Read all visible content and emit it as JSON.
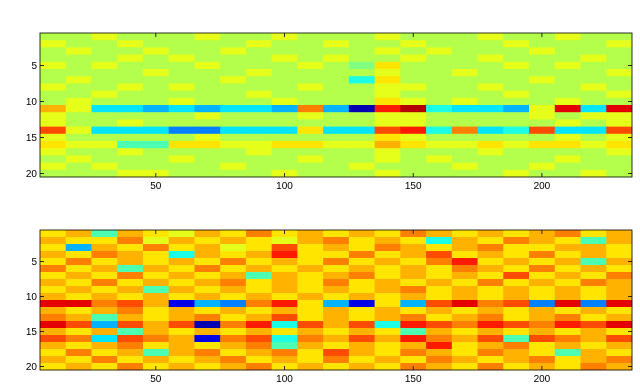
{
  "chart_data": [
    {
      "type": "heatmap",
      "colormap": "jet",
      "clim": [
        -10,
        10
      ],
      "y_reversed": true,
      "x": [
        10,
        20,
        30,
        40,
        50,
        60,
        70,
        80,
        90,
        100,
        110,
        120,
        130,
        140,
        150,
        160,
        170,
        180,
        190,
        200,
        210,
        220,
        230
      ],
      "y": [
        1,
        2,
        3,
        4,
        5,
        6,
        7,
        8,
        9,
        10,
        11,
        12,
        13,
        14,
        15,
        16,
        17,
        18,
        19,
        20
      ],
      "xlim": [
        5,
        235
      ],
      "ylim": [
        0.5,
        20.5
      ],
      "xticks": [
        50,
        100,
        150,
        200
      ],
      "yticks": [
        5,
        10,
        15,
        20
      ],
      "z": [
        [
          1,
          1,
          2,
          1,
          1,
          1,
          2,
          1,
          1,
          2,
          1,
          1,
          1,
          2,
          1,
          1,
          1,
          2,
          1,
          1,
          2,
          1,
          1
        ],
        [
          2,
          1,
          1,
          2,
          1,
          1,
          1,
          1,
          2,
          1,
          1,
          2,
          1,
          1,
          2,
          1,
          1,
          1,
          2,
          1,
          1,
          1,
          2
        ],
        [
          1,
          2,
          1,
          1,
          2,
          1,
          1,
          2,
          1,
          1,
          1,
          1,
          1,
          2,
          1,
          2,
          1,
          1,
          1,
          2,
          1,
          1,
          1
        ],
        [
          1,
          1,
          1,
          2,
          1,
          2,
          1,
          1,
          1,
          2,
          1,
          2,
          1,
          1,
          2,
          1,
          1,
          2,
          1,
          1,
          1,
          2,
          1
        ],
        [
          2,
          1,
          2,
          1,
          1,
          1,
          2,
          1,
          1,
          1,
          2,
          1,
          0,
          3,
          1,
          1,
          1,
          1,
          2,
          1,
          2,
          1,
          1
        ],
        [
          1,
          1,
          1,
          1,
          2,
          1,
          1,
          1,
          2,
          1,
          1,
          1,
          1,
          2,
          1,
          1,
          2,
          1,
          1,
          1,
          1,
          1,
          2
        ],
        [
          1,
          2,
          1,
          1,
          1,
          1,
          1,
          2,
          1,
          1,
          1,
          1,
          -2,
          3,
          1,
          1,
          1,
          1,
          1,
          2,
          1,
          1,
          1
        ],
        [
          2,
          1,
          1,
          2,
          1,
          2,
          1,
          1,
          1,
          1,
          2,
          1,
          1,
          2,
          2,
          1,
          1,
          2,
          1,
          1,
          1,
          2,
          1
        ],
        [
          1,
          1,
          2,
          1,
          1,
          1,
          1,
          1,
          2,
          1,
          1,
          1,
          1,
          2,
          1,
          1,
          1,
          1,
          2,
          1,
          1,
          1,
          2
        ],
        [
          1,
          2,
          1,
          1,
          1,
          2,
          1,
          1,
          1,
          2,
          1,
          1,
          1,
          3,
          2,
          1,
          2,
          1,
          1,
          1,
          2,
          1,
          1
        ],
        [
          4,
          2,
          -3,
          -3,
          -4,
          -3,
          -4,
          -3,
          -3,
          -4,
          5,
          -4,
          -9,
          7,
          9,
          -2,
          -3,
          -3,
          -4,
          2,
          8,
          -3,
          8
        ],
        [
          2,
          1,
          1,
          1,
          1,
          1,
          2,
          1,
          1,
          1,
          2,
          1,
          1,
          2,
          2,
          1,
          1,
          1,
          1,
          2,
          1,
          2,
          2
        ],
        [
          2,
          1,
          1,
          2,
          1,
          1,
          1,
          1,
          1,
          1,
          1,
          1,
          1,
          2,
          2,
          1,
          1,
          1,
          1,
          1,
          2,
          1,
          2
        ],
        [
          6,
          2,
          -3,
          -3,
          -3,
          -5,
          -5,
          -3,
          -3,
          -3,
          3,
          -3,
          -3,
          6,
          7,
          -2,
          5,
          -3,
          -2,
          6,
          -3,
          -3,
          6
        ],
        [
          2,
          1,
          1,
          1,
          1,
          1,
          2,
          1,
          1,
          1,
          1,
          1,
          1,
          3,
          2,
          1,
          1,
          1,
          1,
          1,
          2,
          1,
          2
        ],
        [
          3,
          2,
          2,
          -1,
          -1,
          3,
          3,
          2,
          2,
          3,
          3,
          2,
          2,
          4,
          3,
          2,
          2,
          3,
          2,
          3,
          3,
          2,
          3
        ],
        [
          2,
          1,
          1,
          2,
          1,
          1,
          1,
          1,
          2,
          1,
          1,
          1,
          1,
          2,
          1,
          1,
          1,
          2,
          1,
          1,
          1,
          1,
          2
        ],
        [
          1,
          2,
          1,
          1,
          1,
          2,
          1,
          1,
          1,
          1,
          2,
          1,
          1,
          2,
          1,
          2,
          1,
          1,
          1,
          1,
          2,
          1,
          1
        ],
        [
          2,
          1,
          2,
          1,
          1,
          1,
          1,
          2,
          1,
          1,
          1,
          1,
          2,
          1,
          1,
          1,
          2,
          1,
          1,
          2,
          1,
          1,
          1
        ],
        [
          1,
          1,
          1,
          2,
          2,
          1,
          1,
          1,
          1,
          2,
          1,
          1,
          1,
          2,
          1,
          1,
          1,
          1,
          2,
          1,
          1,
          2,
          1
        ]
      ]
    },
    {
      "type": "heatmap",
      "colormap": "jet",
      "clim": [
        -10,
        10
      ],
      "y_reversed": true,
      "x": [
        10,
        20,
        30,
        40,
        50,
        60,
        70,
        80,
        90,
        100,
        110,
        120,
        130,
        140,
        150,
        160,
        170,
        180,
        190,
        200,
        210,
        220,
        230
      ],
      "y": [
        1,
        2,
        3,
        4,
        5,
        6,
        7,
        8,
        9,
        10,
        11,
        12,
        13,
        14,
        15,
        16,
        17,
        18,
        19,
        20
      ],
      "xlim": [
        5,
        235
      ],
      "ylim": [
        0.5,
        20.5
      ],
      "xticks": [
        50,
        100,
        150,
        200
      ],
      "yticks": [
        5,
        10,
        15,
        20
      ],
      "z": [
        [
          3,
          4,
          -1,
          4,
          3,
          2,
          4,
          3,
          5,
          3,
          4,
          3,
          4,
          3,
          5,
          4,
          3,
          4,
          3,
          4,
          5,
          3,
          4
        ],
        [
          4,
          3,
          3,
          5,
          2,
          4,
          3,
          4,
          3,
          2,
          4,
          5,
          3,
          4,
          3,
          -2,
          4,
          3,
          5,
          4,
          3,
          -1,
          4
        ],
        [
          3,
          -4,
          4,
          3,
          5,
          3,
          4,
          2,
          3,
          6,
          3,
          4,
          3,
          5,
          4,
          3,
          4,
          5,
          3,
          3,
          4,
          4,
          3
        ],
        [
          4,
          3,
          5,
          4,
          3,
          -2,
          4,
          3,
          4,
          7,
          3,
          3,
          5,
          3,
          4,
          6,
          3,
          4,
          3,
          5,
          3,
          4,
          3
        ],
        [
          3,
          5,
          3,
          4,
          3,
          4,
          3,
          5,
          3,
          4,
          3,
          5,
          3,
          4,
          3,
          5,
          7,
          3,
          4,
          3,
          4,
          -1,
          4
        ],
        [
          5,
          3,
          4,
          -1,
          4,
          3,
          5,
          3,
          4,
          3,
          4,
          3,
          4,
          3,
          4,
          3,
          5,
          4,
          3,
          5,
          3,
          4,
          3
        ],
        [
          3,
          4,
          3,
          5,
          3,
          4,
          3,
          4,
          -1,
          4,
          3,
          4,
          5,
          3,
          4,
          3,
          4,
          3,
          6,
          3,
          4,
          3,
          5
        ],
        [
          4,
          3,
          5,
          3,
          4,
          3,
          4,
          5,
          3,
          4,
          3,
          5,
          3,
          4,
          3,
          4,
          3,
          5,
          3,
          4,
          3,
          5,
          4
        ],
        [
          3,
          4,
          3,
          4,
          -1,
          4,
          3,
          4,
          3,
          4,
          3,
          4,
          3,
          4,
          5,
          3,
          4,
          3,
          4,
          3,
          4,
          3,
          4
        ],
        [
          4,
          3,
          4,
          3,
          4,
          3,
          4,
          3,
          4,
          3,
          4,
          3,
          4,
          3,
          4,
          3,
          4,
          3,
          4,
          3,
          4,
          3,
          4
        ],
        [
          8,
          8,
          5,
          6,
          4,
          -8,
          -4,
          -5,
          5,
          7,
          3,
          -4,
          -8,
          3,
          -4,
          6,
          8,
          5,
          6,
          -5,
          8,
          -5,
          8
        ],
        [
          4,
          3,
          4,
          5,
          3,
          4,
          3,
          4,
          3,
          4,
          3,
          4,
          3,
          4,
          3,
          4,
          3,
          4,
          3,
          4,
          3,
          4,
          3
        ],
        [
          5,
          4,
          -1,
          4,
          3,
          4,
          5,
          3,
          4,
          6,
          3,
          4,
          3,
          4,
          5,
          3,
          4,
          5,
          3,
          4,
          5,
          3,
          4
        ],
        [
          8,
          6,
          -4,
          6,
          4,
          6,
          -9,
          5,
          7,
          -2,
          6,
          4,
          6,
          -2,
          7,
          6,
          5,
          7,
          6,
          5,
          7,
          6,
          8
        ],
        [
          4,
          3,
          4,
          -1,
          4,
          3,
          4,
          3,
          4,
          3,
          4,
          3,
          4,
          3,
          -1,
          4,
          3,
          4,
          3,
          4,
          3,
          4,
          3
        ],
        [
          6,
          5,
          -3,
          6,
          5,
          4,
          -8,
          5,
          6,
          -2,
          5,
          4,
          6,
          4,
          7,
          5,
          4,
          6,
          -1,
          6,
          5,
          4,
          6
        ],
        [
          4,
          3,
          4,
          5,
          3,
          4,
          3,
          4,
          5,
          -1,
          4,
          3,
          4,
          3,
          4,
          7,
          3,
          4,
          5,
          3,
          4,
          3,
          4
        ],
        [
          3,
          5,
          3,
          4,
          -1,
          4,
          5,
          3,
          4,
          5,
          3,
          6,
          4,
          3,
          5,
          4,
          3,
          5,
          4,
          3,
          -1,
          4,
          3
        ],
        [
          4,
          3,
          5,
          3,
          4,
          3,
          4,
          5,
          3,
          4,
          3,
          5,
          3,
          4,
          3,
          5,
          4,
          3,
          4,
          5,
          3,
          4,
          5
        ],
        [
          3,
          4,
          3,
          5,
          3,
          4,
          3,
          4,
          5,
          3,
          4,
          3,
          4,
          3,
          5,
          4,
          3,
          5,
          3,
          4,
          3,
          5,
          4
        ]
      ]
    }
  ]
}
